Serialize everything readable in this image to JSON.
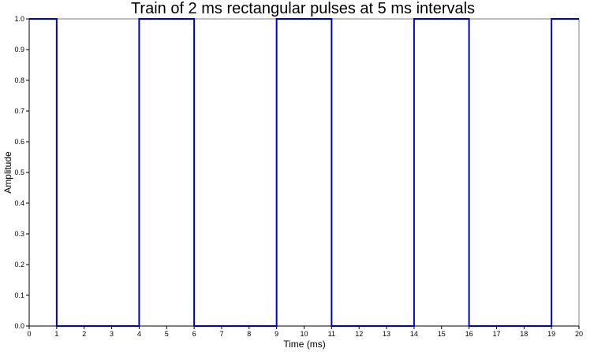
{
  "chart_data": {
    "type": "line",
    "title": "Train of 2 ms rectangular pulses at 5 ms intervals",
    "xlabel": "Time (ms)",
    "ylabel": "Amplitude",
    "xlim": [
      0,
      20
    ],
    "ylim": [
      0,
      1
    ],
    "x_ticks": [
      0,
      1,
      2,
      3,
      4,
      5,
      6,
      7,
      8,
      9,
      10,
      11,
      12,
      13,
      14,
      15,
      16,
      17,
      18,
      19,
      20
    ],
    "y_ticks": [
      "0.0",
      "0.1",
      "0.2",
      "0.3",
      "0.4",
      "0.5",
      "0.6",
      "0.7",
      "0.8",
      "0.9",
      "1.0"
    ],
    "grid": false,
    "series": [
      {
        "color": "#0000cc",
        "x": [
          0,
          1,
          1,
          4,
          4,
          6,
          6,
          9,
          9,
          11,
          11,
          14,
          14,
          16,
          16,
          19,
          19,
          20
        ],
        "y": [
          1,
          1,
          0,
          0,
          1,
          1,
          0,
          0,
          1,
          1,
          0,
          0,
          1,
          1,
          0,
          0,
          1,
          1
        ]
      }
    ]
  }
}
